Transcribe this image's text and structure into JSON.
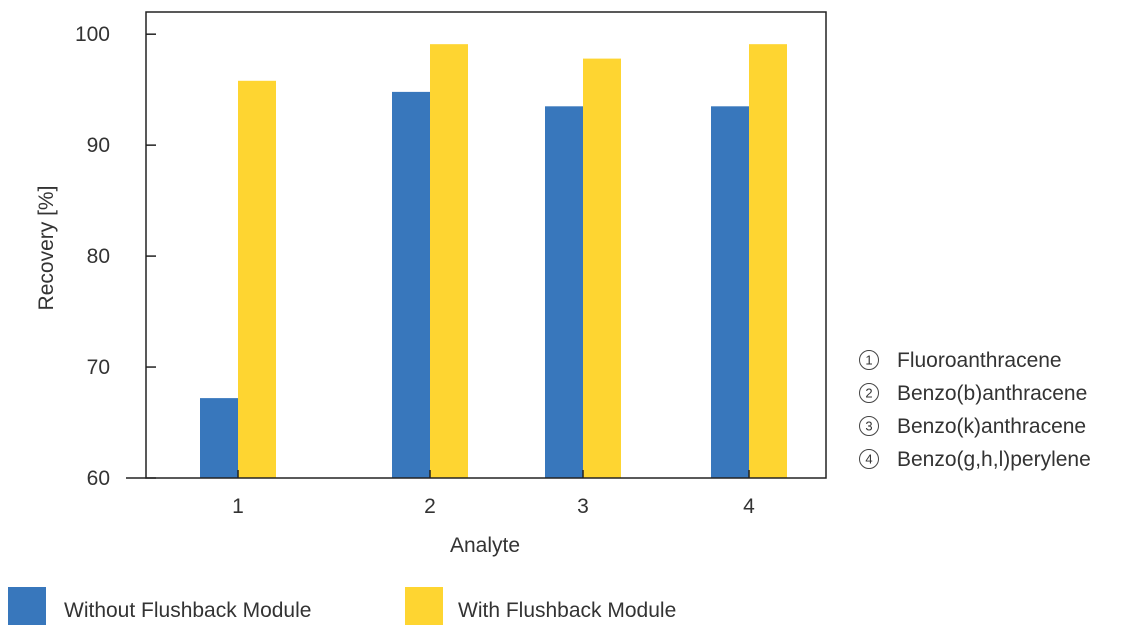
{
  "chart_data": {
    "type": "bar",
    "title": "",
    "xlabel": "Analyte",
    "ylabel": "Recovery [%]",
    "ylim": [
      60,
      102
    ],
    "yticks": [
      60,
      70,
      80,
      90,
      100
    ],
    "categories": [
      "1",
      "2",
      "3",
      "4"
    ],
    "series": [
      {
        "name": "Without Flushback Module",
        "color": "#3877bc",
        "values": [
          67.2,
          94.8,
          93.5,
          93.5
        ]
      },
      {
        "name": "With Flushback Module",
        "color": "#fed531",
        "values": [
          95.8,
          99.1,
          97.8,
          99.1
        ]
      }
    ],
    "grid": false,
    "legend_position": "bottom-left",
    "analyte_key": [
      {
        "number": "1",
        "name": "Fluoroanthracene"
      },
      {
        "number": "2",
        "name": "Benzo(b)anthracene"
      },
      {
        "number": "3",
        "name": "Benzo(k)anthracene"
      },
      {
        "number": "4",
        "name": "Benzo(g,h,l)perylene"
      }
    ]
  }
}
